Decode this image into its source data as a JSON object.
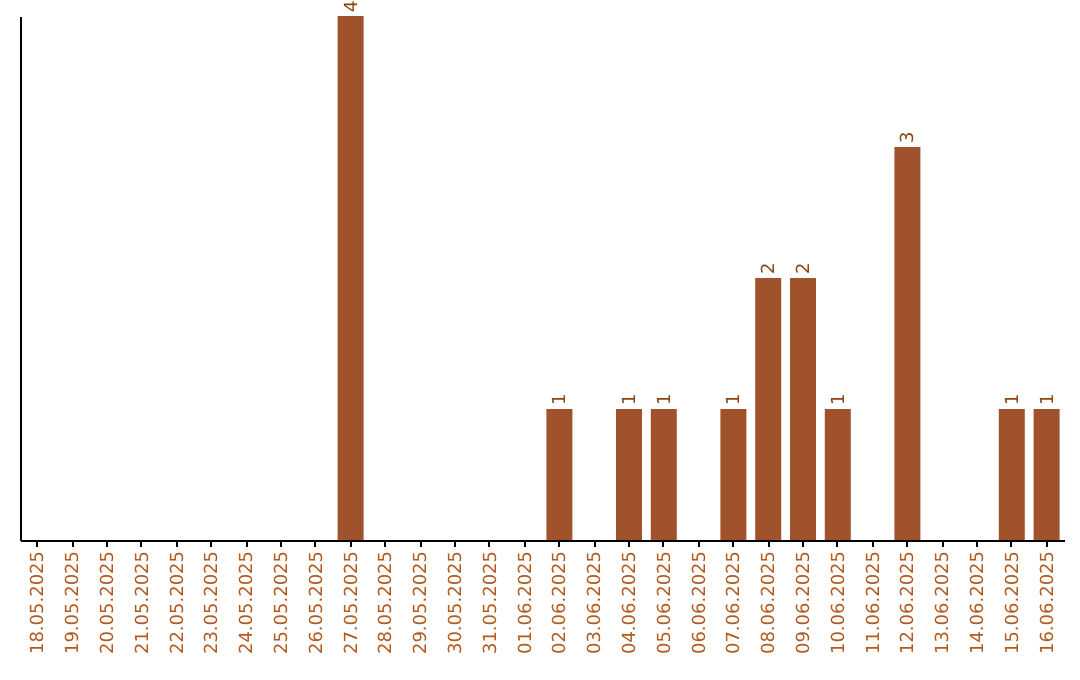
{
  "chart_data": {
    "type": "bar",
    "categories": [
      "18.05.2025",
      "19.05.2025",
      "20.05.2025",
      "21.05.2025",
      "22.05.2025",
      "23.05.2025",
      "24.05.2025",
      "25.05.2025",
      "26.05.2025",
      "27.05.2025",
      "28.05.2025",
      "29.05.2025",
      "30.05.2025",
      "31.05.2025",
      "01.06.2025",
      "02.06.2025",
      "03.06.2025",
      "04.06.2025",
      "05.06.2025",
      "06.06.2025",
      "07.06.2025",
      "08.06.2025",
      "09.06.2025",
      "10.06.2025",
      "11.06.2025",
      "12.06.2025",
      "13.06.2025",
      "14.06.2025",
      "15.06.2025",
      "16.06.2025"
    ],
    "values": [
      0,
      0,
      0,
      0,
      0,
      0,
      0,
      0,
      0,
      4,
      0,
      0,
      0,
      0,
      0,
      1,
      0,
      1,
      1,
      0,
      1,
      2,
      2,
      1,
      0,
      3,
      0,
      0,
      1,
      1
    ],
    "value_labels": [
      null,
      null,
      null,
      null,
      null,
      null,
      null,
      null,
      null,
      "4",
      null,
      null,
      null,
      null,
      null,
      "1",
      null,
      "1",
      "1",
      null,
      "1",
      "2",
      "2",
      "1",
      null,
      "3",
      null,
      null,
      "1",
      "1"
    ],
    "color": "#a0522d",
    "tick_labels": "x",
    "grid": false
  }
}
